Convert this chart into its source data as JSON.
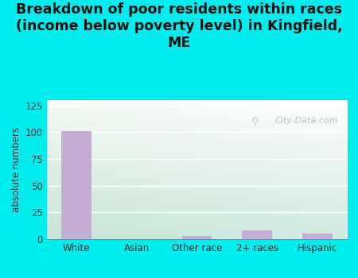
{
  "categories": [
    "White",
    "Asian",
    "Other race",
    "2+ races",
    "Hispanic"
  ],
  "values": [
    101,
    0,
    3,
    8,
    5
  ],
  "bar_color": "#c4aed4",
  "title": "Breakdown of poor residents within races\n(income below poverty level) in Kingfield,\nME",
  "ylabel": "absolute numbers",
  "ylim": [
    0,
    130
  ],
  "yticks": [
    0,
    25,
    50,
    75,
    100,
    125
  ],
  "background_color": "#00eeee",
  "plot_bg_topleft": "#dff0df",
  "plot_bg_topright": "#f5faf5",
  "plot_bg_bottomleft": "#c5e8e0",
  "plot_bg_bottomright": "#e8f5f0",
  "watermark": "City-Data.com",
  "title_fontsize": 12.5,
  "label_fontsize": 8.5
}
